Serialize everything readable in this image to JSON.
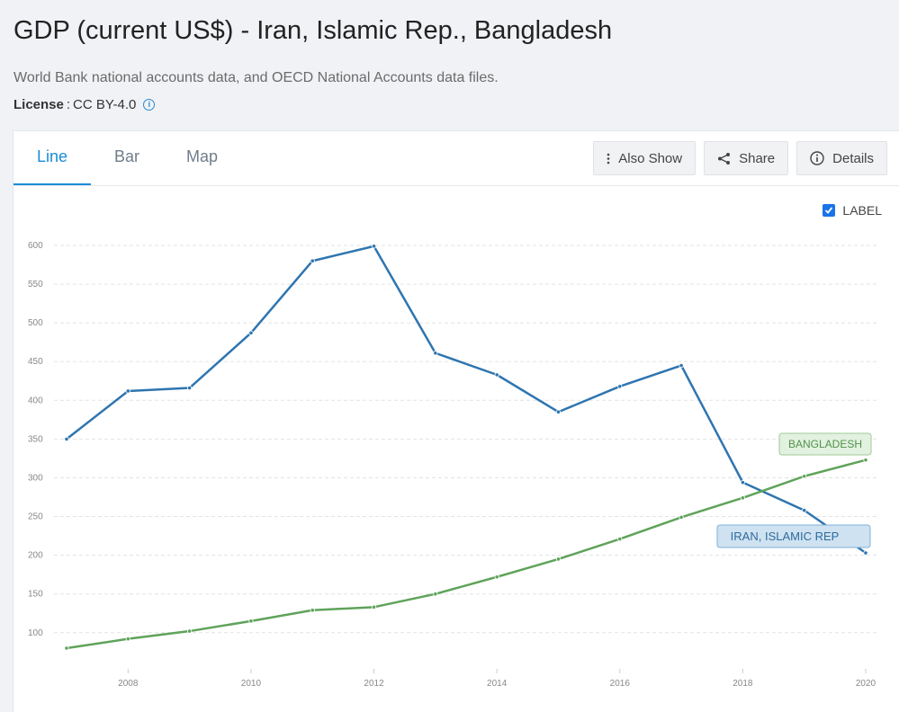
{
  "header": {
    "title": "GDP (current US$) - Iran, Islamic Rep., Bangladesh",
    "subtitle": "World Bank national accounts data, and OECD National Accounts data files.",
    "license_key": "License",
    "license_value": "CC BY-4.0"
  },
  "tabs": [
    {
      "label": "Line",
      "active": true
    },
    {
      "label": "Bar",
      "active": false
    },
    {
      "label": "Map",
      "active": false
    }
  ],
  "actions": {
    "also_show": "Also Show",
    "share": "Share",
    "details": "Details"
  },
  "label_toggle": {
    "label": "LABEL",
    "checked": true
  },
  "colors": {
    "accent": "#1a8cd8",
    "iran": "#2e75b0",
    "bangladesh": "#5fa35a"
  },
  "chart_data": {
    "type": "line",
    "title": "",
    "xlabel": "",
    "ylabel": "",
    "x": [
      2007,
      2008,
      2009,
      2010,
      2011,
      2012,
      2013,
      2014,
      2015,
      2016,
      2017,
      2018,
      2019,
      2020
    ],
    "x_ticks": [
      "2008",
      "2010",
      "2012",
      "2014",
      "2016",
      "2018",
      "2020"
    ],
    "y_ticks": [
      "100",
      "150",
      "200",
      "250",
      "300",
      "350",
      "400",
      "450",
      "500",
      "550",
      "600"
    ],
    "ylim": [
      70,
      610
    ],
    "grid": true,
    "series": [
      {
        "name": "IRAN, ISLAMIC REP.",
        "label_text": "IRAN, ISLAMIC REP",
        "values": [
          350,
          412,
          416,
          487,
          580,
          599,
          461,
          433,
          385,
          418,
          445,
          294,
          258,
          203
        ]
      },
      {
        "name": "BANGLADESH",
        "label_text": "BANGLADESH",
        "values": [
          80,
          92,
          102,
          115,
          129,
          133,
          150,
          172,
          195,
          221,
          249,
          274,
          302,
          323
        ]
      }
    ]
  }
}
